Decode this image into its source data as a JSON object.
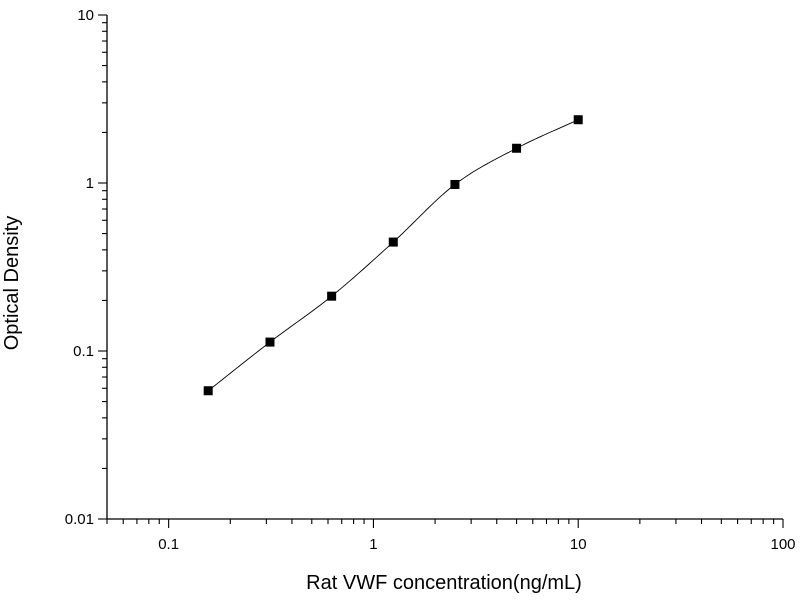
{
  "chart_data": {
    "type": "scatter",
    "title": "",
    "xlabel": "Rat VWF concentration(ng/mL)",
    "ylabel": "Optical Density",
    "xscale": "log",
    "yscale": "log",
    "xlim": [
      0.05,
      100
    ],
    "ylim": [
      0.01,
      10
    ],
    "grid": false,
    "legend": "none",
    "x_ticks": [
      "0.1",
      "1",
      "10",
      "100"
    ],
    "y_ticks": [
      "0.01",
      "0.1",
      "1",
      "10"
    ],
    "series": [
      {
        "marker": "square",
        "fit": "smooth curve",
        "points": [
          {
            "x": 0.156,
            "y": 0.058
          },
          {
            "x": 0.3125,
            "y": 0.113
          },
          {
            "x": 0.625,
            "y": 0.212
          },
          {
            "x": 1.25,
            "y": 0.445
          },
          {
            "x": 2.5,
            "y": 0.98
          },
          {
            "x": 5,
            "y": 1.61
          },
          {
            "x": 10,
            "y": 2.38
          }
        ]
      }
    ]
  }
}
